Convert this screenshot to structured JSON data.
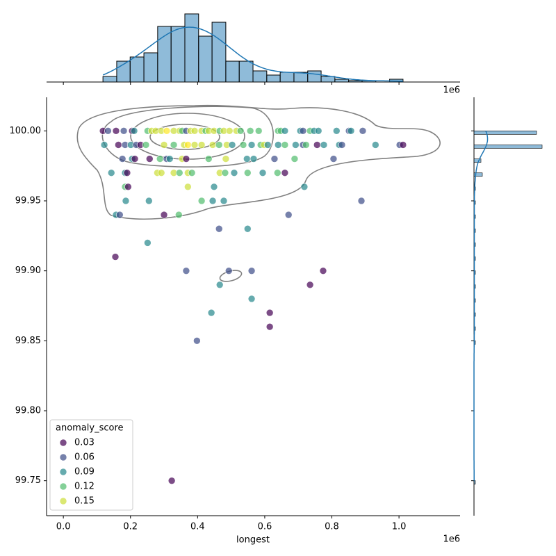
{
  "chart_data": {
    "type": "scatter",
    "xlabel": "longest",
    "x_offset_label": "1e6",
    "top_offset_label": "1e6",
    "xlim": [
      -0.05,
      1.182
    ],
    "ylim": [
      99.725,
      100.024
    ],
    "xticks": [
      {
        "value": 0,
        "label": "0.0"
      },
      0.2,
      0.4,
      0.6,
      0.8,
      {
        "value": 1,
        "label": "1.0"
      }
    ],
    "yticks": [
      99.75,
      {
        "value": 99.8,
        "label": "99.80"
      },
      99.85,
      {
        "value": 99.9,
        "label": "99.90"
      },
      99.95,
      {
        "value": 100,
        "label": "100.00"
      }
    ],
    "palette": "viridis",
    "legend": {
      "title": "anomaly_score",
      "entries": [
        0.03,
        0.06,
        0.09,
        0.12,
        0.15
      ]
    },
    "legend_loc": "lower left",
    "hist_color": "#1f77b4",
    "x": [
      0.118,
      0.133,
      0.157,
      0.18,
      0.205,
      0.211,
      0.251,
      0.263,
      0.275,
      0.292,
      0.308,
      0.329,
      0.346,
      0.354,
      0.366,
      0.379,
      0.391,
      0.412,
      0.424,
      0.433,
      0.449,
      0.466,
      0.478,
      0.495,
      0.516,
      0.528,
      0.557,
      0.582,
      0.64,
      0.648,
      0.66,
      0.706,
      0.714,
      0.735,
      0.747,
      0.76,
      0.814,
      0.851,
      0.857,
      0.892,
      0.122,
      0.164,
      0.184,
      0.201,
      0.217,
      0.23,
      0.246,
      0.3,
      0.329,
      0.36,
      0.371,
      0.391,
      0.412,
      0.445,
      0.464,
      0.487,
      0.503,
      0.536,
      0.561,
      0.588,
      0.598,
      0.609,
      0.64,
      0.66,
      0.692,
      0.714,
      0.723,
      0.756,
      0.776,
      0.822,
      0.83,
      0.93,
      1.002,
      1.012,
      0.176,
      0.205,
      0.213,
      0.257,
      0.288,
      0.308,
      0.317,
      0.354,
      0.366,
      0.433,
      0.484,
      0.547,
      0.567,
      0.629,
      0.689,
      0.805,
      0.143,
      0.184,
      0.19,
      0.28,
      0.292,
      0.329,
      0.346,
      0.371,
      0.383,
      0.466,
      0.482,
      0.509,
      0.549,
      0.594,
      0.638,
      0.66,
      0.184,
      0.193,
      0.371,
      0.449,
      0.718,
      0.186,
      0.255,
      0.412,
      0.445,
      0.478,
      0.888,
      0.157,
      0.168,
      0.3,
      0.344,
      0.671,
      0.464,
      0.549,
      0.251,
      0.155,
      0.366,
      0.493,
      0.561,
      0.774,
      0.466,
      0.735,
      0.561,
      0.441,
      0.615,
      0.615,
      0.398,
      0.323
    ],
    "values": [
      100,
      100,
      100,
      100,
      100,
      100,
      100,
      100,
      100,
      100,
      100,
      100,
      100,
      100,
      100,
      100,
      100,
      100,
      100,
      100,
      100,
      100,
      100,
      100,
      100,
      100,
      100,
      100,
      100,
      100,
      100,
      100,
      100,
      100,
      100,
      100,
      100,
      100,
      100,
      100,
      99.99,
      99.99,
      99.99,
      99.99,
      99.99,
      99.99,
      99.99,
      99.99,
      99.99,
      99.99,
      99.99,
      99.99,
      99.99,
      99.99,
      99.99,
      99.99,
      99.99,
      99.99,
      99.99,
      99.99,
      99.99,
      99.99,
      99.99,
      99.99,
      99.99,
      99.99,
      99.99,
      99.99,
      99.99,
      99.99,
      99.99,
      99.99,
      99.99,
      99.99,
      99.98,
      99.98,
      99.98,
      99.98,
      99.98,
      99.98,
      99.98,
      99.98,
      99.98,
      99.98,
      99.98,
      99.98,
      99.98,
      99.98,
      99.98,
      99.98,
      99.97,
      99.97,
      99.97,
      99.97,
      99.97,
      99.97,
      99.97,
      99.97,
      99.97,
      99.97,
      99.97,
      99.97,
      99.97,
      99.97,
      99.97,
      99.97,
      99.96,
      99.96,
      99.96,
      99.96,
      99.96,
      99.95,
      99.95,
      99.95,
      99.95,
      99.95,
      99.95,
      99.94,
      99.94,
      99.94,
      99.94,
      99.94,
      99.93,
      99.93,
      99.92,
      99.91,
      99.9,
      99.9,
      99.9,
      99.9,
      99.89,
      99.89,
      99.88,
      99.87,
      99.87,
      99.86,
      99.85,
      99.75
    ],
    "hue": [
      0.03,
      0.06,
      0.03,
      0.06,
      0.03,
      0.09,
      0.12,
      0.15,
      0.15,
      0.15,
      0.16,
      0.15,
      0.15,
      0.12,
      0.06,
      0.15,
      0.15,
      0.15,
      0.12,
      0.15,
      0.15,
      0.12,
      0.15,
      0.15,
      0.15,
      0.12,
      0.12,
      0.12,
      0.12,
      0.12,
      0.09,
      0.09,
      0.06,
      0.12,
      0.09,
      0.09,
      0.09,
      0.06,
      0.09,
      0.06,
      0.09,
      0.03,
      0.06,
      0.09,
      0.06,
      0.03,
      0.12,
      0.15,
      0.12,
      0.15,
      0.16,
      0.15,
      0.15,
      0.15,
      0.12,
      0.15,
      0.09,
      0.12,
      0.09,
      0.12,
      0.15,
      0.09,
      0.09,
      0.12,
      0.09,
      0.06,
      0.12,
      0.03,
      0.09,
      0.09,
      0.06,
      0.09,
      0.06,
      0.03,
      0.06,
      0.09,
      0.03,
      0.03,
      0.12,
      0.06,
      0.09,
      0.15,
      0.03,
      0.12,
      0.15,
      0.09,
      0.09,
      0.06,
      0.12,
      0.06,
      0.09,
      0.09,
      0.03,
      0.15,
      0.15,
      0.15,
      0.12,
      0.15,
      0.12,
      0.15,
      0.12,
      0.09,
      0.12,
      0.09,
      0.12,
      0.03,
      0.12,
      0.03,
      0.15,
      0.09,
      0.09,
      0.09,
      0.09,
      0.12,
      0.09,
      0.09,
      0.06,
      0.09,
      0.06,
      0.03,
      0.12,
      0.06,
      0.06,
      0.09,
      0.09,
      0.03,
      0.06,
      0.06,
      0.06,
      0.03,
      0.09,
      0.03,
      0.09,
      0.09,
      0.03,
      0.03,
      0.06,
      0.03
    ],
    "top_histogram": {
      "bins": [
        0.118,
        0.159,
        0.199,
        0.24,
        0.281,
        0.321,
        0.362,
        0.403,
        0.443,
        0.484,
        0.524,
        0.565,
        0.606,
        0.646,
        0.687,
        0.728,
        0.768,
        0.809,
        0.85,
        0.89,
        0.931,
        0.972,
        1.012
      ],
      "counts": [
        4,
        15,
        18,
        21,
        40,
        40,
        49,
        33,
        43,
        15,
        15,
        8,
        5,
        7,
        7,
        8,
        4,
        2,
        1,
        1,
        0,
        2
      ]
    },
    "right_histogram": {
      "levels": [
        100,
        99.99,
        99.98,
        99.97,
        99.96,
        99.95,
        99.94,
        99.93,
        99.92,
        99.91,
        99.9,
        99.89,
        99.88,
        99.87,
        99.86,
        99.85,
        99.75
      ],
      "counts": [
        45,
        49,
        5,
        6,
        1,
        1,
        1,
        1,
        1,
        1,
        1,
        1,
        1,
        1,
        1,
        1,
        1
      ]
    }
  }
}
